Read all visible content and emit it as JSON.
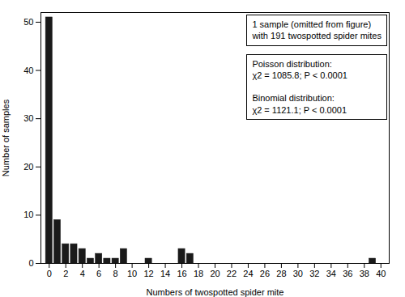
{
  "chart_data": {
    "type": "bar",
    "x": [
      0,
      1,
      2,
      3,
      4,
      5,
      6,
      7,
      8,
      9,
      12,
      16,
      17,
      39
    ],
    "values": [
      51,
      9,
      4,
      4,
      3,
      1,
      2,
      1,
      1,
      3,
      1,
      3,
      2,
      1
    ],
    "color": "#1a1a1a",
    "xlabel": "Numbers of twospotted spider mite",
    "ylabel": "Number of samples",
    "xlim": [
      -1,
      41
    ],
    "ylim": [
      0,
      52
    ],
    "xticks": [
      0,
      2,
      4,
      6,
      8,
      10,
      12,
      14,
      16,
      18,
      20,
      22,
      24,
      26,
      28,
      30,
      32,
      34,
      36,
      38,
      40
    ],
    "yticks": [
      0,
      10,
      20,
      30,
      40,
      50
    ],
    "grid": false,
    "annotations": [
      "1 sample (omitted from figure)\nwith 191 twospotted spider mites",
      "Poisson distribution:\nχ2 = 1085.8; P < 0.0001\n\nBinomial distribution:\nχ2 = 1121.1; P < 0.0001"
    ]
  }
}
